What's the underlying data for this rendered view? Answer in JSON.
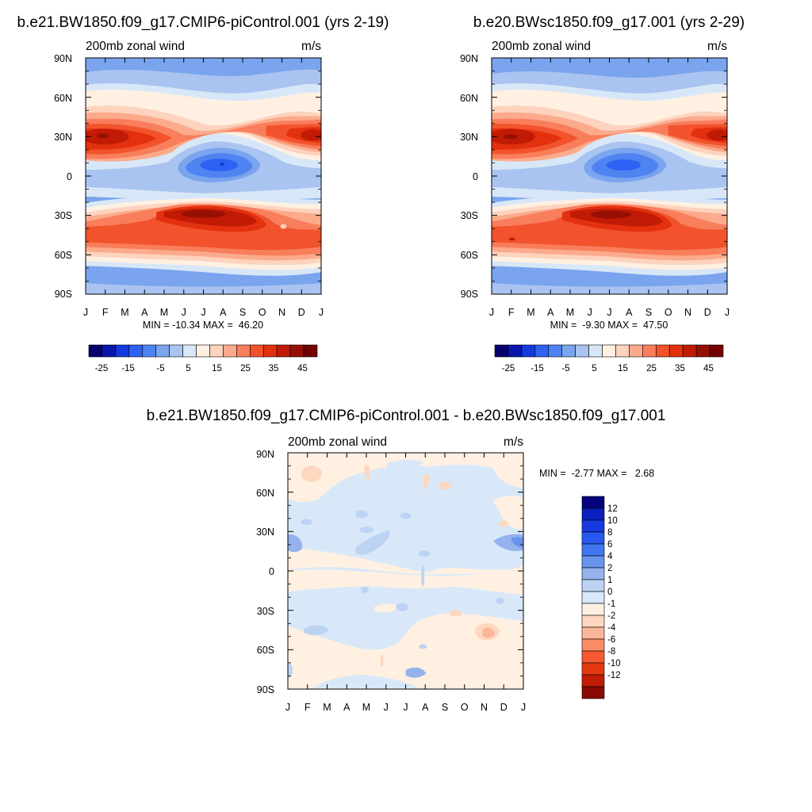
{
  "colors": {
    "full_palette": [
      "#08006c",
      "#0a17ac",
      "#1439dc",
      "#2d62f2",
      "#4e83f1",
      "#7aa4ee",
      "#a9c4f0",
      "#d8e7f7",
      "#fff0e2",
      "#fdd3be",
      "#fbab8c",
      "#f87e5c",
      "#f2532c",
      "#e3300f",
      "#c11a05",
      "#951003",
      "#750000"
    ],
    "full_levels": [
      -25,
      -15,
      -5,
      5,
      15,
      25,
      35,
      45
    ],
    "diff_palette": [
      "#04027d",
      "#0a1fbd",
      "#1739e0",
      "#2859ef",
      "#3f77f1",
      "#6994ee",
      "#95b2ee",
      "#bdd3f3",
      "#d8e8f8",
      "#fff0e2",
      "#fdd7bf",
      "#fbb698",
      "#f98d66",
      "#f65a33",
      "#e3390f",
      "#c01d04",
      "#8b0a02"
    ],
    "diff_levels": [
      "12",
      "10",
      "8",
      "6",
      "4",
      "2",
      "1",
      "0",
      "-1",
      "-2",
      "-4",
      "-6",
      "-8",
      "-10",
      "-12"
    ]
  },
  "chart_data": [
    {
      "type": "heatmap",
      "title": "b.e21.BW1850.f09_g17.CMIP6-piControl.001 (yrs 2-19)",
      "subtitle_left": "200mb zonal wind",
      "subtitle_right": "m/s",
      "x_ticklabels": [
        "J",
        "F",
        "M",
        "A",
        "M",
        "J",
        "J",
        "A",
        "S",
        "O",
        "N",
        "D",
        "J"
      ],
      "y_ticklabels": [
        "90N",
        "60N",
        "30N",
        "0",
        "30S",
        "60S",
        "90S"
      ],
      "ylim": [
        -90,
        90
      ],
      "minmax_label": "MIN = -10.34 MAX =  46.20",
      "colorbar_ticks": [
        "-25",
        "-15",
        "-5",
        "5",
        "15",
        "25",
        "35",
        "45"
      ],
      "stats": {
        "min": -10.34,
        "max": 46.2
      }
    },
    {
      "type": "heatmap",
      "title": "b.e20.BWsc1850.f09_g17.001 (yrs 2-29)",
      "subtitle_left": "200mb zonal wind",
      "subtitle_right": "m/s",
      "x_ticklabels": [
        "J",
        "F",
        "M",
        "A",
        "M",
        "J",
        "J",
        "A",
        "S",
        "O",
        "N",
        "D",
        "J"
      ],
      "y_ticklabels": [
        "90N",
        "60N",
        "30N",
        "0",
        "30S",
        "60S",
        "90S"
      ],
      "ylim": [
        -90,
        90
      ],
      "minmax_label": "MIN =  -9.30 MAX =  47.50",
      "colorbar_ticks": [
        "-25",
        "-15",
        "-5",
        "5",
        "15",
        "25",
        "35",
        "45"
      ],
      "stats": {
        "min": -9.3,
        "max": 47.5
      }
    },
    {
      "type": "heatmap",
      "title": "b.e21.BW1850.f09_g17.CMIP6-piControl.001 - b.e20.BWsc1850.f09_g17.001",
      "subtitle_left": "200mb zonal wind",
      "subtitle_right": "m/s",
      "x_ticklabels": [
        "J",
        "F",
        "M",
        "A",
        "M",
        "J",
        "J",
        "A",
        "S",
        "O",
        "N",
        "D",
        "J"
      ],
      "y_ticklabels": [
        "90N",
        "60N",
        "30N",
        "0",
        "30S",
        "60S",
        "90S"
      ],
      "ylim": [
        -90,
        90
      ],
      "minmax_label": "MIN =  -2.77 MAX =   2.68",
      "colorbar_ticks": [
        "12",
        "10",
        "8",
        "6",
        "4",
        "2",
        "1",
        "0",
        "-1",
        "-2",
        "-4",
        "-6",
        "-8",
        "-10",
        "-12"
      ],
      "stats": {
        "min": -2.77,
        "max": 2.68
      }
    }
  ]
}
